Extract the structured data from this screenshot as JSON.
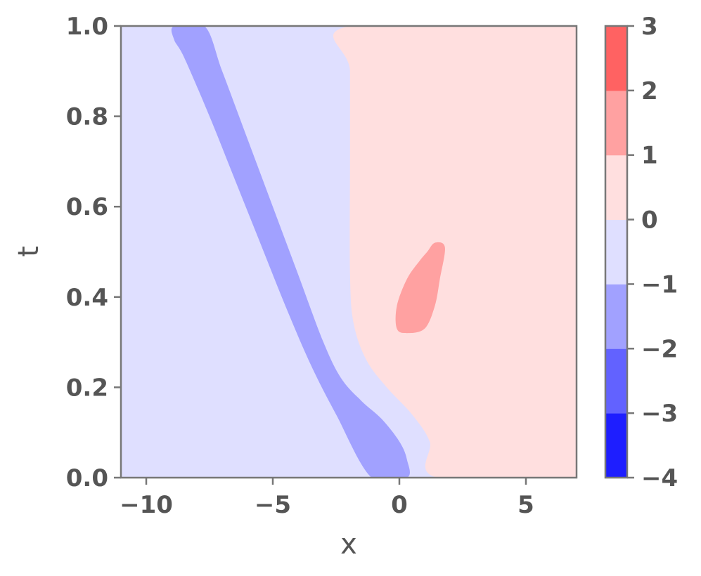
{
  "chart_data": {
    "type": "heatmap",
    "title": "",
    "xlabel": "x",
    "ylabel": "t",
    "xlim": [
      -11,
      7
    ],
    "ylim": [
      0.0,
      1.0
    ],
    "x_ticks": [
      {
        "value": -10,
        "label": "−10"
      },
      {
        "value": -5,
        "label": "−5"
      },
      {
        "value": 0,
        "label": "0"
      },
      {
        "value": 5,
        "label": "5"
      }
    ],
    "y_ticks": [
      {
        "value": 0.0,
        "label": "0.0"
      },
      {
        "value": 0.2,
        "label": "0.2"
      },
      {
        "value": 0.4,
        "label": "0.4"
      },
      {
        "value": 0.6,
        "label": "0.6"
      },
      {
        "value": 0.8,
        "label": "0.8"
      },
      {
        "value": 1.0,
        "label": "1.0"
      }
    ],
    "colorbar": {
      "levels": [
        -4,
        -3,
        -2,
        -1,
        0,
        1,
        2,
        3
      ],
      "labels": [
        "−4",
        "−3",
        "−2",
        "−1",
        "0",
        "1",
        "2",
        "3"
      ],
      "colors": [
        "#1e1eff",
        "#6262ff",
        "#a1a1ff",
        "#dfdfff",
        "#ffdfdf",
        "#ffa1a1",
        "#ff6262"
      ]
    },
    "regions": [
      {
        "name": "negative-band",
        "level_range": [
          -2,
          -1
        ],
        "color": "#a1a1ff",
        "boundary": [
          [
            -8.9,
            1.0
          ],
          [
            -7.7,
            1.0
          ],
          [
            -7.0,
            0.9
          ],
          [
            -6.0,
            0.75
          ],
          [
            -5.0,
            0.6
          ],
          [
            -4.0,
            0.45
          ],
          [
            -3.0,
            0.3
          ],
          [
            -2.3,
            0.22
          ],
          [
            -1.5,
            0.17
          ],
          [
            -0.7,
            0.13
          ],
          [
            0.0,
            0.08
          ],
          [
            0.3,
            0.04
          ],
          [
            0.3,
            0.0
          ],
          [
            -1.1,
            0.0
          ],
          [
            -2.5,
            0.14
          ],
          [
            -3.5,
            0.25
          ],
          [
            -4.5,
            0.38
          ],
          [
            -5.5,
            0.52
          ],
          [
            -6.5,
            0.66
          ],
          [
            -7.5,
            0.8
          ],
          [
            -8.5,
            0.93
          ],
          [
            -8.9,
            0.97
          ]
        ]
      },
      {
        "name": "positive-region",
        "level_range": [
          0,
          1
        ],
        "color": "#ffdfdf",
        "boundary": [
          [
            -1.95,
            1.0
          ],
          [
            7,
            1.0
          ],
          [
            7,
            0.0
          ],
          [
            1.5,
            0.0
          ],
          [
            1.2,
            0.08
          ],
          [
            0.5,
            0.14
          ],
          [
            -0.5,
            0.2
          ],
          [
            -1.3,
            0.26
          ],
          [
            -1.8,
            0.34
          ],
          [
            -1.95,
            0.45
          ],
          [
            -1.95,
            0.7
          ],
          [
            -1.95,
            0.9
          ]
        ]
      },
      {
        "name": "positive-blob",
        "level_range": [
          1,
          2
        ],
        "color": "#ffa1a1",
        "boundary": [
          [
            1.4,
            0.52
          ],
          [
            1.8,
            0.51
          ],
          [
            1.6,
            0.44
          ],
          [
            1.4,
            0.38
          ],
          [
            1.0,
            0.33
          ],
          [
            0.3,
            0.32
          ],
          [
            -0.1,
            0.33
          ],
          [
            -0.1,
            0.38
          ],
          [
            0.3,
            0.44
          ],
          [
            0.8,
            0.48
          ],
          [
            1.1,
            0.5
          ]
        ]
      }
    ],
    "background_color": "#dfdfff",
    "grid": false
  }
}
